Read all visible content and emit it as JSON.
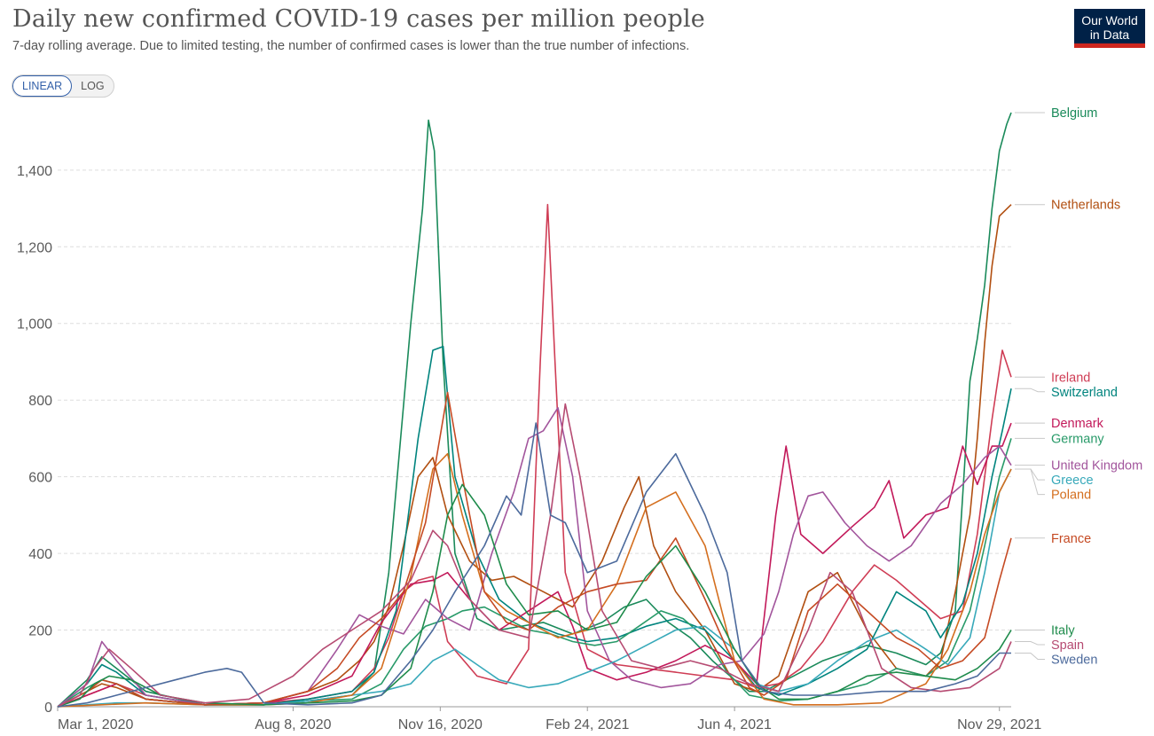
{
  "header": {
    "title": "Daily new confirmed COVID-19 cases per million people",
    "subtitle": "7-day rolling average. Due to limited testing, the number of confirmed cases is lower than the true number of infections.",
    "logo_line1": "Our World",
    "logo_line2": "in Data",
    "logo_color": "#002147",
    "logo_accent": "#ce261e"
  },
  "scale_toggle": {
    "linear_label": "LINEAR",
    "log_label": "LOG",
    "selected": "LINEAR"
  },
  "chart_data": {
    "type": "line",
    "title": "Daily new confirmed COVID-19 cases per million people",
    "xlabel": "",
    "ylabel": "",
    "ylim": [
      0,
      1550
    ],
    "xlim": [
      0,
      648
    ],
    "yticks": [
      0,
      200,
      400,
      600,
      800,
      1000,
      1200,
      1400
    ],
    "ytick_labels": [
      "0",
      "200",
      "400",
      "600",
      "800",
      "1,000",
      "1,200",
      "1,400"
    ],
    "xticks": [
      0,
      160,
      260,
      360,
      460,
      640
    ],
    "xtick_labels": [
      "Mar 1, 2020",
      "Aug 8, 2020",
      "Nov 16, 2020",
      "Feb 24, 2021",
      "Jun 4, 2021",
      "Nov 29, 2021"
    ],
    "x_unit": "days since Mar 1, 2020",
    "grid": "horizontal dashed",
    "legend_placement": "right, labels at line ends",
    "series": [
      {
        "name": "Belgium",
        "color": "#1a8a5a",
        "x": [
          0,
          20,
          30,
          40,
          60,
          100,
          140,
          170,
          200,
          215,
          225,
          240,
          248,
          252,
          256,
          262,
          270,
          285,
          300,
          330,
          350,
          370,
          385,
          400,
          415,
          430,
          445,
          460,
          470,
          480,
          500,
          520,
          550,
          570,
          590,
          600,
          610,
          615,
          620,
          625,
          630,
          635,
          640,
          645,
          648
        ],
        "y": [
          0,
          70,
          130,
          100,
          40,
          5,
          5,
          15,
          30,
          90,
          350,
          1000,
          1300,
          1530,
          1450,
          900,
          400,
          230,
          200,
          220,
          190,
          220,
          260,
          280,
          220,
          180,
          120,
          70,
          40,
          40,
          80,
          120,
          160,
          140,
          110,
          140,
          250,
          550,
          850,
          960,
          1100,
          1300,
          1450,
          1520,
          1550
        ]
      },
      {
        "name": "Netherlands",
        "color": "#b14f11",
        "x": [
          0,
          20,
          30,
          40,
          60,
          100,
          140,
          170,
          190,
          205,
          215,
          225,
          235,
          245,
          255,
          265,
          280,
          295,
          310,
          330,
          350,
          370,
          385,
          395,
          405,
          420,
          440,
          460,
          475,
          490,
          510,
          530,
          550,
          570,
          590,
          600,
          610,
          620,
          625,
          630,
          635,
          640,
          648
        ],
        "y": [
          0,
          40,
          60,
          50,
          20,
          5,
          10,
          40,
          70,
          120,
          170,
          260,
          420,
          600,
          650,
          500,
          380,
          330,
          340,
          300,
          260,
          380,
          520,
          600,
          420,
          300,
          200,
          60,
          40,
          80,
          300,
          350,
          200,
          100,
          80,
          120,
          300,
          500,
          700,
          950,
          1150,
          1280,
          1310
        ]
      },
      {
        "name": "Ireland",
        "color": "#cf3d55",
        "x": [
          0,
          20,
          40,
          60,
          100,
          140,
          170,
          200,
          215,
          225,
          235,
          245,
          255,
          265,
          285,
          305,
          320,
          328,
          333,
          338,
          345,
          360,
          380,
          400,
          420,
          440,
          460,
          475,
          490,
          505,
          520,
          540,
          555,
          570,
          585,
          600,
          615,
          625,
          635,
          642,
          648
        ],
        "y": [
          0,
          30,
          60,
          30,
          5,
          10,
          20,
          40,
          100,
          180,
          300,
          330,
          340,
          170,
          80,
          60,
          150,
          900,
          1310,
          900,
          350,
          150,
          110,
          100,
          90,
          80,
          70,
          50,
          60,
          100,
          170,
          300,
          370,
          330,
          280,
          230,
          250,
          450,
          750,
          930,
          860
        ]
      },
      {
        "name": "Switzerland",
        "color": "#00847e",
        "x": [
          0,
          20,
          30,
          40,
          60,
          100,
          140,
          170,
          200,
          215,
          230,
          245,
          255,
          262,
          270,
          285,
          300,
          320,
          340,
          360,
          380,
          400,
          420,
          440,
          460,
          475,
          490,
          510,
          530,
          550,
          570,
          590,
          600,
          615,
          625,
          635,
          642,
          648
        ],
        "y": [
          0,
          60,
          110,
          90,
          30,
          5,
          5,
          20,
          40,
          90,
          250,
          700,
          930,
          940,
          600,
          400,
          280,
          220,
          190,
          170,
          180,
          210,
          230,
          200,
          120,
          50,
          30,
          60,
          100,
          150,
          300,
          250,
          180,
          270,
          400,
          600,
          720,
          830
        ]
      },
      {
        "name": "Denmark",
        "color": "#c2195a",
        "x": [
          0,
          20,
          40,
          60,
          100,
          140,
          170,
          200,
          220,
          240,
          255,
          265,
          280,
          300,
          320,
          340,
          350,
          360,
          380,
          400,
          420,
          440,
          460,
          475,
          488,
          495,
          505,
          520,
          540,
          555,
          565,
          575,
          590,
          605,
          615,
          625,
          635,
          642,
          648
        ],
        "y": [
          0,
          30,
          60,
          20,
          5,
          10,
          30,
          80,
          220,
          320,
          330,
          350,
          280,
          200,
          250,
          300,
          210,
          100,
          70,
          90,
          120,
          160,
          120,
          60,
          500,
          680,
          450,
          400,
          470,
          520,
          590,
          440,
          500,
          520,
          680,
          580,
          680,
          680,
          740
        ]
      },
      {
        "name": "Germany",
        "color": "#289a69",
        "x": [
          0,
          20,
          30,
          40,
          60,
          100,
          140,
          170,
          200,
          220,
          235,
          250,
          265,
          275,
          290,
          305,
          320,
          335,
          350,
          365,
          380,
          395,
          410,
          425,
          440,
          455,
          470,
          490,
          510,
          530,
          550,
          570,
          590,
          605,
          620,
          630,
          640,
          648
        ],
        "y": [
          0,
          50,
          70,
          60,
          20,
          5,
          5,
          15,
          20,
          60,
          150,
          210,
          230,
          250,
          260,
          230,
          200,
          190,
          170,
          160,
          170,
          210,
          250,
          230,
          180,
          90,
          30,
          15,
          20,
          40,
          60,
          100,
          80,
          120,
          250,
          420,
          600,
          700
        ]
      },
      {
        "name": "United Kingdom",
        "color": "#a2559c",
        "x": [
          0,
          20,
          30,
          40,
          60,
          100,
          140,
          170,
          190,
          205,
          220,
          235,
          250,
          265,
          280,
          295,
          310,
          320,
          330,
          340,
          350,
          360,
          375,
          390,
          410,
          430,
          450,
          465,
          480,
          490,
          500,
          510,
          520,
          535,
          550,
          565,
          580,
          600,
          615,
          630,
          640,
          648
        ],
        "y": [
          0,
          60,
          170,
          120,
          30,
          5,
          10,
          40,
          150,
          240,
          210,
          190,
          280,
          230,
          200,
          400,
          560,
          700,
          720,
          780,
          600,
          250,
          120,
          70,
          50,
          60,
          110,
          120,
          190,
          300,
          450,
          550,
          560,
          480,
          420,
          380,
          420,
          530,
          580,
          650,
          680,
          630
        ]
      },
      {
        "name": "Greece",
        "color": "#38a9ba",
        "x": [
          0,
          20,
          40,
          60,
          100,
          140,
          170,
          200,
          220,
          240,
          255,
          270,
          285,
          300,
          320,
          340,
          360,
          380,
          400,
          420,
          440,
          460,
          475,
          490,
          510,
          530,
          550,
          570,
          590,
          605,
          620,
          630,
          640,
          648
        ],
        "y": [
          0,
          5,
          10,
          10,
          5,
          5,
          15,
          30,
          40,
          60,
          120,
          150,
          110,
          70,
          50,
          60,
          90,
          120,
          160,
          200,
          210,
          150,
          60,
          40,
          60,
          120,
          170,
          200,
          150,
          110,
          180,
          350,
          560,
          620
        ]
      },
      {
        "name": "Poland",
        "color": "#d46f1f",
        "x": [
          0,
          30,
          60,
          100,
          140,
          170,
          200,
          220,
          240,
          255,
          265,
          275,
          290,
          305,
          320,
          340,
          360,
          380,
          400,
          420,
          440,
          460,
          480,
          500,
          530,
          560,
          590,
          605,
          620,
          630,
          640,
          648
        ],
        "y": [
          0,
          5,
          10,
          5,
          5,
          10,
          30,
          100,
          340,
          620,
          660,
          500,
          300,
          250,
          220,
          180,
          200,
          320,
          520,
          560,
          420,
          120,
          20,
          5,
          5,
          10,
          60,
          150,
          300,
          450,
          560,
          620
        ]
      },
      {
        "name": "France",
        "color": "#c54a23",
        "x": [
          0,
          20,
          30,
          40,
          60,
          100,
          140,
          170,
          190,
          205,
          220,
          235,
          250,
          265,
          275,
          290,
          305,
          320,
          340,
          360,
          380,
          400,
          420,
          440,
          455,
          470,
          480,
          495,
          510,
          530,
          550,
          570,
          585,
          600,
          615,
          630,
          640,
          648
        ],
        "y": [
          0,
          40,
          70,
          60,
          20,
          5,
          10,
          40,
          100,
          180,
          230,
          300,
          480,
          820,
          600,
          300,
          220,
          200,
          260,
          300,
          320,
          330,
          440,
          280,
          150,
          50,
          30,
          70,
          250,
          320,
          250,
          180,
          150,
          100,
          120,
          180,
          330,
          440
        ]
      },
      {
        "name": "Italy",
        "color": "#1e8b4b",
        "x": [
          0,
          15,
          25,
          35,
          50,
          70,
          100,
          140,
          170,
          200,
          220,
          240,
          255,
          265,
          275,
          290,
          305,
          320,
          340,
          360,
          380,
          400,
          420,
          440,
          460,
          475,
          490,
          510,
          530,
          550,
          570,
          590,
          610,
          625,
          640,
          648
        ],
        "y": [
          0,
          20,
          60,
          80,
          70,
          30,
          10,
          5,
          10,
          15,
          30,
          100,
          300,
          500,
          580,
          500,
          320,
          240,
          250,
          200,
          220,
          340,
          420,
          300,
          150,
          60,
          20,
          20,
          40,
          80,
          90,
          80,
          70,
          100,
          150,
          200
        ]
      },
      {
        "name": "Spain",
        "color": "#b64b72",
        "x": [
          0,
          15,
          25,
          35,
          50,
          70,
          100,
          130,
          160,
          180,
          200,
          220,
          240,
          255,
          265,
          280,
          300,
          320,
          335,
          345,
          355,
          370,
          390,
          410,
          430,
          450,
          470,
          490,
          510,
          525,
          540,
          560,
          580,
          600,
          620,
          640,
          648
        ],
        "y": [
          0,
          30,
          100,
          150,
          100,
          30,
          10,
          20,
          80,
          150,
          200,
          250,
          330,
          460,
          420,
          280,
          200,
          180,
          500,
          790,
          600,
          250,
          120,
          100,
          120,
          100,
          60,
          40,
          200,
          350,
          300,
          100,
          50,
          40,
          50,
          100,
          170
        ]
      },
      {
        "name": "Sweden",
        "color": "#4c6a9c",
        "x": [
          0,
          20,
          40,
          60,
          80,
          100,
          115,
          125,
          140,
          170,
          200,
          220,
          240,
          255,
          270,
          290,
          305,
          315,
          325,
          335,
          345,
          360,
          380,
          400,
          420,
          440,
          455,
          465,
          480,
          500,
          530,
          560,
          590,
          610,
          625,
          640,
          648
        ],
        "y": [
          0,
          10,
          30,
          50,
          70,
          90,
          100,
          90,
          10,
          5,
          10,
          30,
          120,
          200,
          300,
          420,
          550,
          500,
          740,
          500,
          480,
          350,
          380,
          560,
          660,
          500,
          350,
          120,
          40,
          30,
          30,
          40,
          40,
          60,
          80,
          140,
          140
        ]
      }
    ]
  }
}
